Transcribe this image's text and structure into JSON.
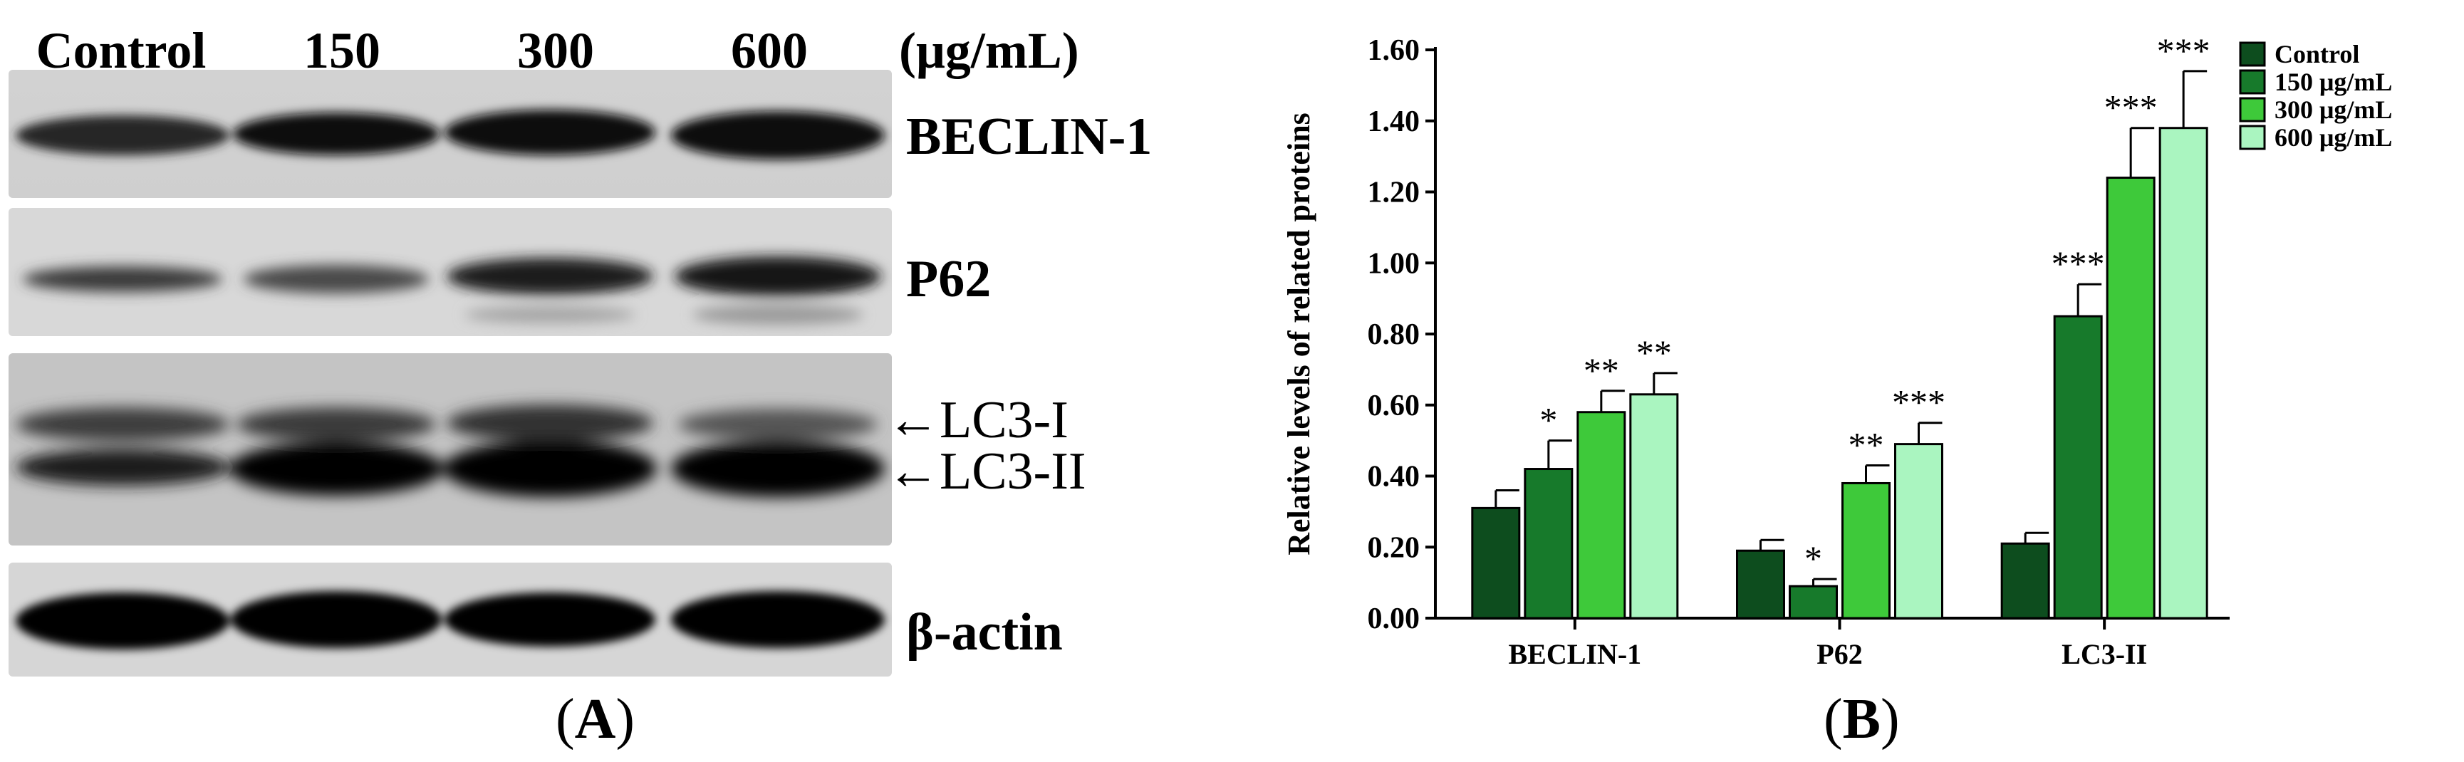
{
  "panel_a": {
    "lanes": [
      "Control",
      "150",
      "300",
      "600"
    ],
    "unit": "(μg/mL)",
    "blots": [
      {
        "name": "BECLIN-1"
      },
      {
        "name": "P62"
      },
      {
        "name": "LC3"
      },
      {
        "name": "β-actin"
      }
    ],
    "lc3_labels": [
      "←LC3-I",
      "←LC3-II"
    ],
    "panel_letter": "A"
  },
  "chart_data": {
    "type": "bar",
    "ylabel": "Relative levels of related proteins",
    "xlabel": "",
    "ylim": [
      0,
      1.6
    ],
    "yticks": [
      "0.00",
      "0.20",
      "0.40",
      "0.60",
      "0.80",
      "1.00",
      "1.20",
      "1.40",
      "1.60"
    ],
    "categories": [
      "BECLIN-1",
      "P62",
      "LC3-II"
    ],
    "legend_position": "top-right",
    "series": [
      {
        "name": "Control",
        "color": "#0d4d1e",
        "values": [
          0.31,
          0.19,
          0.21
        ],
        "errors": [
          0.05,
          0.03,
          0.03
        ],
        "sig": [
          "",
          "",
          ""
        ]
      },
      {
        "name": "150 μg/mL",
        "color": "#177a2b",
        "values": [
          0.42,
          0.09,
          0.85
        ],
        "errors": [
          0.08,
          0.02,
          0.09
        ],
        "sig": [
          "*",
          "*",
          "***"
        ]
      },
      {
        "name": "300 μg/mL",
        "color": "#3ec93a",
        "values": [
          0.58,
          0.38,
          1.24
        ],
        "errors": [
          0.06,
          0.05,
          0.14
        ],
        "sig": [
          "**",
          "**",
          "***"
        ]
      },
      {
        "name": "600 μg/mL",
        "color": "#aaf5c0",
        "values": [
          0.63,
          0.49,
          1.38
        ],
        "errors": [
          0.06,
          0.06,
          0.16
        ],
        "sig": [
          "**",
          "***",
          "***"
        ]
      }
    ],
    "panel_letter": "B"
  }
}
